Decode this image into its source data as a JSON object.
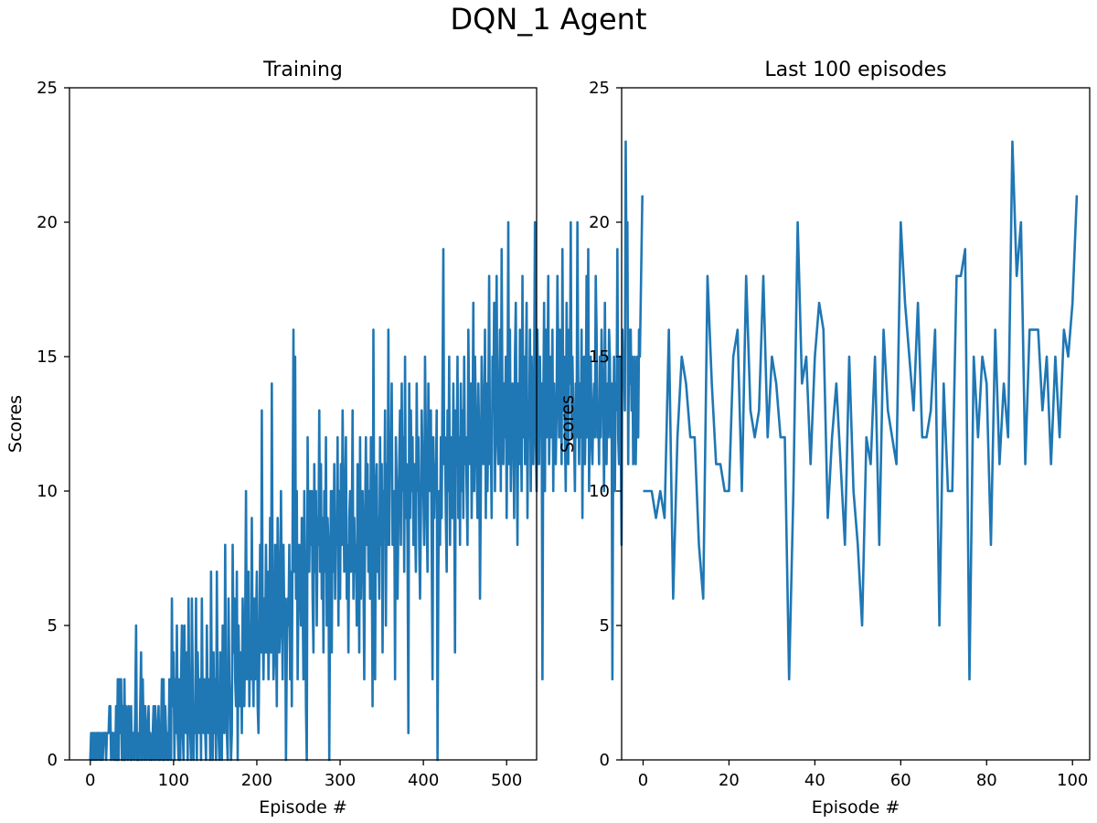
{
  "figure": {
    "suptitle": "DQN_1 Agent",
    "line_color": "#1f77b4"
  },
  "chart_data": [
    {
      "type": "line",
      "title": "Training",
      "xlabel": "Episode #",
      "ylabel": "Scores",
      "xlim": [
        -25,
        536
      ],
      "ylim": [
        0,
        25
      ],
      "xticks": [
        0,
        100,
        200,
        300,
        400,
        500
      ],
      "yticks": [
        0,
        5,
        10,
        15,
        20,
        25
      ],
      "grid": false,
      "series": [
        {
          "x_start": 0,
          "values": [
            0,
            1,
            0,
            1,
            0,
            1,
            0,
            1,
            0,
            1,
            1,
            0,
            1,
            0,
            1,
            0,
            1,
            1,
            1,
            0,
            1,
            1,
            1,
            2,
            2,
            0,
            1,
            1,
            0,
            1,
            0,
            2,
            0,
            3,
            0,
            3,
            1,
            3,
            0,
            2,
            0,
            3,
            0,
            2,
            1,
            0,
            2,
            1,
            0,
            2,
            0,
            1,
            1,
            0,
            2,
            5,
            0,
            1,
            0,
            0,
            2,
            4,
            0,
            3,
            1,
            0,
            2,
            1,
            0,
            1,
            2,
            0,
            1,
            0,
            0,
            1,
            2,
            0,
            2,
            1,
            0,
            1,
            2,
            0,
            0,
            1,
            3,
            0,
            3,
            0,
            2,
            1,
            0,
            1,
            0,
            3,
            1,
            0,
            6,
            2,
            4,
            0,
            3,
            1,
            5,
            1,
            0,
            3,
            0,
            3,
            5,
            1,
            0,
            5,
            2,
            1,
            4,
            0,
            6,
            2,
            1,
            0,
            6,
            3,
            0,
            2,
            1,
            6,
            0,
            4,
            2,
            1,
            3,
            0,
            6,
            2,
            1,
            3,
            1,
            0,
            5,
            2,
            1,
            3,
            0,
            7,
            2,
            0,
            4,
            1,
            3,
            0,
            7,
            2,
            1,
            0,
            4,
            2,
            0,
            5,
            3,
            1,
            8,
            2,
            1,
            0,
            6,
            3,
            2,
            0,
            1,
            8,
            4,
            6,
            3,
            2,
            7,
            0,
            5,
            3,
            2,
            4,
            1,
            6,
            4,
            2,
            5,
            10,
            3,
            4,
            7,
            2,
            5,
            3,
            9,
            4,
            2,
            6,
            3,
            5,
            7,
            2,
            1,
            4,
            8,
            4,
            13,
            5,
            3,
            6,
            4,
            8,
            4,
            7,
            3,
            5,
            9,
            4,
            14,
            6,
            3,
            4,
            8,
            5,
            2,
            9,
            7,
            4,
            5,
            10,
            6,
            3,
            8,
            5,
            6,
            0,
            4,
            6,
            5,
            8,
            3,
            7,
            2,
            9,
            16,
            7,
            15,
            6,
            10,
            3,
            6,
            8,
            7,
            5,
            9,
            6,
            3,
            10,
            7,
            2,
            0,
            12,
            8,
            7,
            10,
            8,
            10,
            6,
            4,
            11,
            7,
            10,
            5,
            9,
            8,
            13,
            7,
            11,
            6,
            9,
            4,
            10,
            7,
            12,
            5,
            9,
            8,
            0,
            6,
            10,
            4,
            10,
            7,
            11,
            6,
            9,
            8,
            12,
            5,
            10,
            6,
            11,
            8,
            13,
            10,
            7,
            9,
            12,
            6,
            8,
            4,
            9,
            10,
            7,
            8,
            13,
            6,
            9,
            7,
            8,
            5,
            11,
            8,
            4,
            12,
            6,
            9,
            10,
            7,
            3,
            9,
            12,
            8,
            11,
            7,
            10,
            6,
            12,
            8,
            2,
            16,
            8,
            3,
            10,
            11,
            7,
            9,
            6,
            12,
            8,
            11,
            4,
            10,
            9,
            13,
            5,
            11,
            8,
            16,
            8,
            12,
            11,
            14,
            8,
            9,
            10,
            3,
            12,
            10,
            6,
            9,
            11,
            13,
            8,
            14,
            10,
            12,
            7,
            15,
            9,
            11,
            8,
            1,
            14,
            9,
            13,
            10,
            12,
            8,
            11,
            9,
            7,
            14,
            10,
            12,
            8,
            6,
            9,
            13,
            11,
            10,
            8,
            15,
            12,
            9,
            7,
            14,
            10,
            11,
            13,
            8,
            3,
            12,
            9,
            11,
            10,
            13,
            0,
            7,
            10,
            8,
            12,
            9,
            14,
            19,
            11,
            12,
            9,
            7,
            13,
            10,
            15,
            8,
            12,
            11,
            9,
            14,
            10,
            4,
            13,
            11,
            15,
            9,
            12,
            8,
            14,
            10,
            13,
            9,
            15,
            11,
            12,
            10,
            8,
            16,
            13,
            11,
            14,
            9,
            12,
            17,
            10,
            15,
            13,
            11,
            9,
            14,
            12,
            6,
            10,
            15,
            13,
            11,
            12,
            16,
            9,
            14,
            10,
            13,
            18,
            11,
            12,
            9,
            15,
            13,
            17,
            10,
            14,
            18,
            12,
            11,
            13,
            16,
            10,
            19,
            13,
            11,
            14,
            12,
            15,
            9,
            13,
            20,
            11,
            16,
            10,
            12,
            14,
            13,
            9,
            15,
            17,
            12,
            8,
            14,
            11,
            16,
            13,
            10,
            18,
            12,
            15,
            11,
            14,
            17,
            9,
            13,
            12,
            16,
            10,
            15,
            13,
            11,
            14,
            20,
            12,
            10,
            16,
            13,
            11,
            15,
            12,
            14,
            3,
            13,
            17,
            10,
            16,
            12,
            14,
            18,
            11,
            13,
            15,
            12,
            16,
            10,
            14,
            12,
            11,
            13,
            18,
            15,
            12,
            16,
            14,
            11,
            19,
            13,
            15,
            12,
            10,
            17,
            13,
            11,
            16,
            14,
            20,
            12,
            15,
            13,
            12,
            10,
            14,
            12,
            20,
            14,
            11,
            14,
            12,
            16,
            9,
            14,
            15,
            11,
            13,
            18,
            12,
            19,
            10,
            13,
            15,
            12,
            11,
            13,
            14,
            12,
            18,
            16,
            12,
            13,
            11,
            15,
            12,
            16,
            14,
            13,
            10,
            17,
            13,
            11,
            14,
            12,
            16,
            15,
            12,
            14,
            3,
            12,
            15,
            10,
            14,
            13,
            19,
            12,
            11,
            15,
            12,
            8,
            16,
            14,
            15,
            13,
            23,
            18,
            20,
            11,
            16,
            14,
            16,
            13,
            15,
            11,
            12,
            15,
            11,
            13,
            15,
            12,
            16,
            15,
            17,
            19,
            21
          ]
        }
      ]
    },
    {
      "type": "line",
      "title": "Last 100 episodes",
      "xlabel": "Episode #",
      "ylabel": "Scores",
      "xlim": [
        -5,
        104
      ],
      "ylim": [
        0,
        25
      ],
      "xticks": [
        0,
        20,
        40,
        60,
        80,
        100
      ],
      "yticks": [
        0,
        5,
        10,
        15,
        20,
        25
      ],
      "grid": false,
      "series": [
        {
          "x_start": 0,
          "values": [
            10,
            10,
            10,
            9,
            10,
            9,
            16,
            6,
            12,
            15,
            14,
            12,
            12,
            8,
            6,
            18,
            14,
            11,
            11,
            10,
            10,
            15,
            16,
            10,
            18,
            13,
            12,
            13,
            18,
            12,
            15,
            14,
            12,
            12,
            3,
            10,
            20,
            14,
            15,
            11,
            15,
            17,
            16,
            9,
            12,
            14,
            11,
            8,
            15,
            10,
            8,
            5,
            12,
            11,
            15,
            8,
            16,
            13,
            12,
            11,
            20,
            17,
            15,
            13,
            17,
            12,
            12,
            13,
            16,
            5,
            14,
            10,
            10,
            18,
            18,
            19,
            3,
            15,
            12,
            15,
            14,
            8,
            16,
            11,
            14,
            12,
            23,
            18,
            20,
            11,
            16,
            16,
            16,
            13,
            15,
            11,
            15,
            12,
            16,
            15,
            17,
            21
          ]
        }
      ]
    }
  ]
}
